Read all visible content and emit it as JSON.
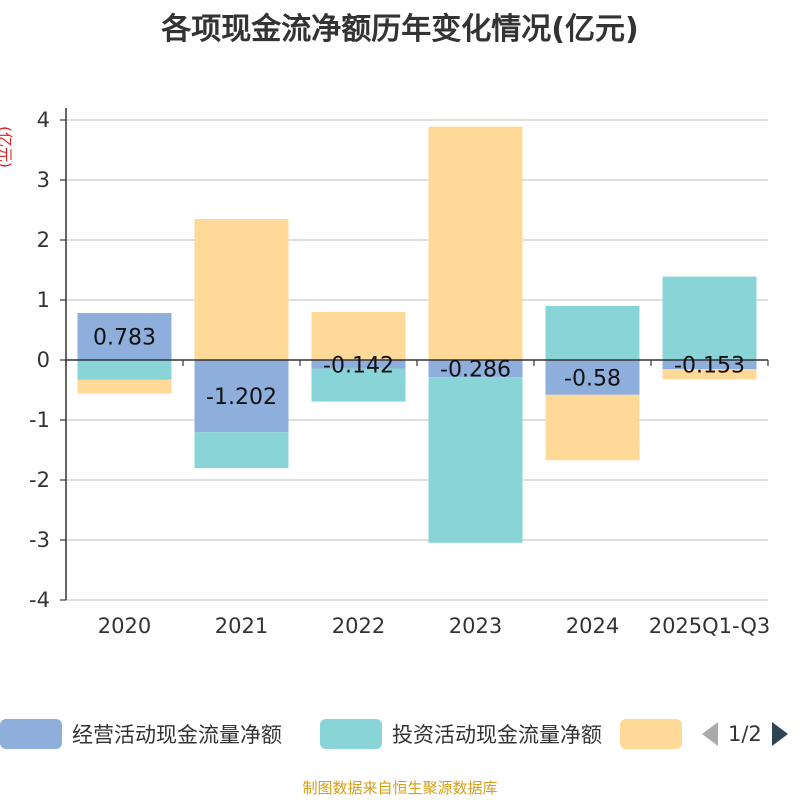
{
  "chart_data": {
    "type": "bar",
    "stacked": true,
    "title": "各项现金流净额历年变化情况(亿元)",
    "ylabel": "(亿元)",
    "ylim": [
      -4,
      4
    ],
    "yticks": [
      "4",
      "3",
      "2",
      "1",
      "0",
      "-1",
      "-2",
      "-3",
      "-4"
    ],
    "categories": [
      "2020",
      "2021",
      "2022",
      "2023",
      "2024",
      "2025Q1-Q3"
    ],
    "series": [
      {
        "name": "经营活动现金流量净额",
        "color": "#8eaedb",
        "values": [
          0.783,
          -1.202,
          -0.142,
          -0.286,
          -0.58,
          -0.153
        ],
        "labels": [
          "0.783",
          "-1.202",
          "-0.142",
          "-0.286",
          "-0.58",
          "-0.153"
        ]
      },
      {
        "name": "投资活动现金流量净额",
        "color": "#88d4d6",
        "values": [
          -0.33,
          -0.6,
          -0.55,
          -2.76,
          0.9,
          1.39
        ]
      },
      {
        "name": "",
        "color": "#fed998",
        "values": [
          -0.23,
          2.35,
          0.8,
          3.89,
          -1.09,
          -0.17
        ]
      }
    ],
    "grid": true,
    "legend_position": "bottom"
  },
  "legend": {
    "page": "1/2"
  },
  "source": "制图数据来自恒生聚源数据库"
}
